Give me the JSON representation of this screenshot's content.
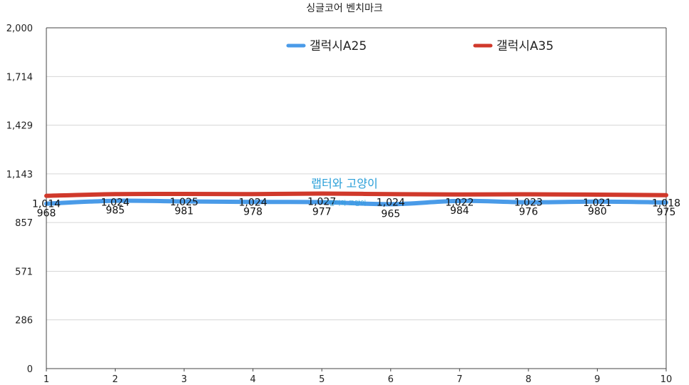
{
  "chart_data": {
    "type": "line",
    "title": "싱글코어 벤치마크",
    "x": [
      1,
      2,
      3,
      4,
      5,
      6,
      7,
      8,
      9,
      10
    ],
    "xlabel": "",
    "ylabel": "",
    "ylim": [
      0,
      2000
    ],
    "yticks": [
      "0",
      "286",
      "571",
      "857",
      "1,143",
      "1,429",
      "1,714",
      "2,000"
    ],
    "ytick_values": [
      0,
      286,
      571,
      857,
      1143,
      1429,
      1714,
      2000
    ],
    "grid": true,
    "legend_position": "top",
    "series": [
      {
        "name": "갤럭시A25",
        "color": "#4a9be8",
        "values": [
          968,
          985,
          981,
          978,
          977,
          965,
          984,
          976,
          980,
          975
        ],
        "labels": [
          "968",
          "985",
          "981",
          "978",
          "977",
          "965",
          "984",
          "976",
          "980",
          "975"
        ]
      },
      {
        "name": "갤럭시A35",
        "color": "#d0392b",
        "values": [
          1014,
          1024,
          1025,
          1024,
          1027,
          1024,
          1022,
          1023,
          1021,
          1018
        ],
        "labels": [
          "1,014",
          "1,024",
          "1,025",
          "1,024",
          "1,027",
          "1,024",
          "1,022",
          "1,023",
          "1,021",
          "1,018"
        ]
      }
    ]
  },
  "watermark": {
    "text": "랩터와 고양이",
    "subtext": "\"\"랩터와 고양이",
    "color": "#2a9fd8"
  }
}
